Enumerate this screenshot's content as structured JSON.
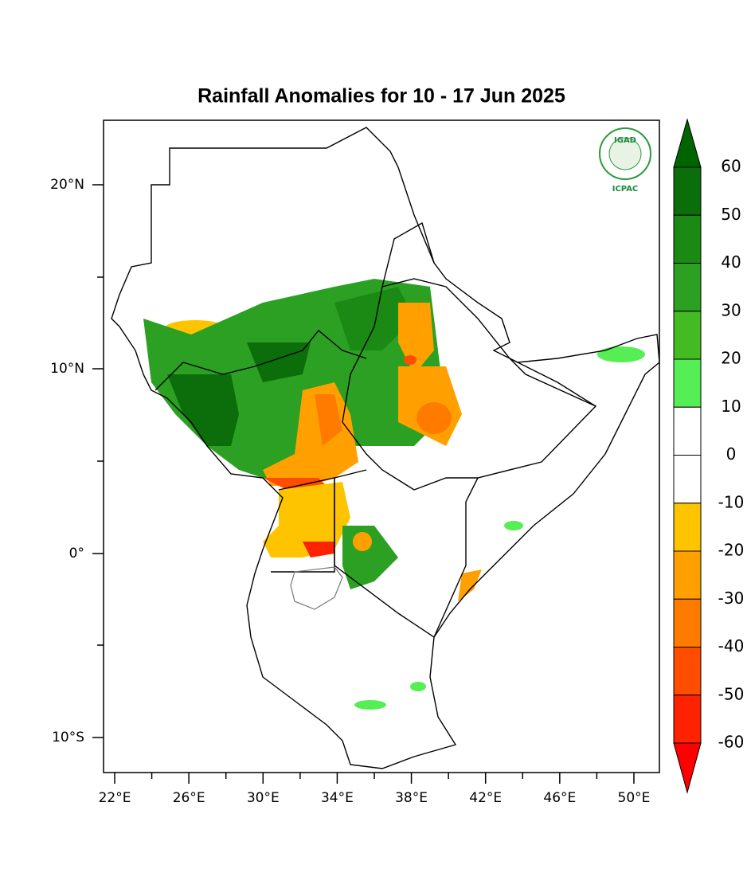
{
  "title": "Rainfall Anomalies for 10 - 17 Jun 2025",
  "map": {
    "lat_ticks": [
      "20°N",
      "10°N",
      "0°",
      "10°S"
    ],
    "lon_ticks": [
      "22°E",
      "26°E",
      "30°E",
      "34°E",
      "38°E",
      "42°E",
      "46°E",
      "50°E"
    ]
  },
  "logo": {
    "name": "IGAD",
    "org": "ICPAC"
  },
  "colorbar": {
    "levels": [
      60,
      50,
      40,
      30,
      20,
      10,
      0,
      -10,
      -20,
      -30,
      -40,
      -50,
      -60
    ],
    "colors": [
      "#006400",
      "#0b6e0b",
      "#1a8a14",
      "#2ba022",
      "#44bb22",
      "#55ee55",
      "#ffffff",
      "#ffffff",
      "#ffc400",
      "#ffa000",
      "#ff7b00",
      "#ff4d00",
      "#ff2200",
      "#ff0000"
    ]
  }
}
